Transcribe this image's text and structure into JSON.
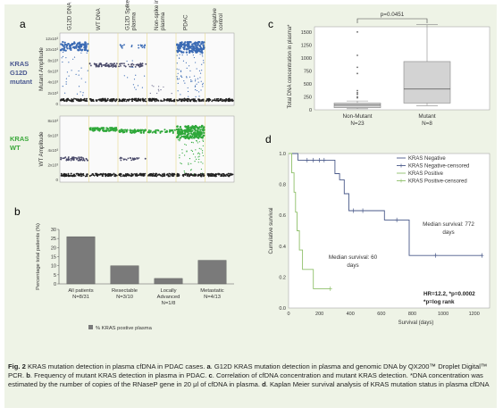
{
  "panels": {
    "a": {
      "letter": "a",
      "col_labels": [
        "G12D DNA",
        "WT DNA",
        "G12D Spike in plasma",
        "Non-spike in plasma",
        "PDAC",
        "Negative control"
      ],
      "top": {
        "row_label": [
          "KRAS",
          "G12D",
          "mutant"
        ],
        "ylabel": "Mutant Amplitude",
        "yticks": [
          "12x10³",
          "10x10³",
          "8x10³",
          "6x10³",
          "4x10³",
          "2x10³",
          "0"
        ]
      },
      "bottom": {
        "row_label": [
          "KRAS",
          "WT"
        ],
        "ylabel": "WT Amplitude",
        "yticks": [
          "8x10³",
          "6x10³",
          "4x10³",
          "2x10³",
          "0"
        ]
      },
      "colors": {
        "mutant": "#3b6bb4",
        "wt": "#2fa83a",
        "negative": "#222222",
        "low": "#3a3a5a"
      }
    },
    "b": {
      "letter": "b",
      "chart_data": {
        "type": "bar",
        "categories": [
          [
            "All patients",
            "N=8/31"
          ],
          [
            "Resectable",
            "N=3/10"
          ],
          [
            "Locally",
            "Advanced",
            "N=1/8"
          ],
          [
            "Metastatic",
            "N=4/13"
          ]
        ],
        "values": [
          26,
          10,
          3,
          13
        ],
        "ylabel": "Percentage total patients (%)",
        "ylim": [
          0,
          30
        ],
        "yticks": [
          "0",
          "5",
          "10",
          "15",
          "20",
          "25",
          "30"
        ],
        "legend": "% KRAS postive plasma",
        "bar_color": "#7a7a7a"
      }
    },
    "c": {
      "letter": "c",
      "chart_data": {
        "type": "box",
        "ylabel": "Total DNA concentration in plasma*",
        "ylim": [
          0,
          1600
        ],
        "yticks": [
          "0",
          "250",
          "500",
          "750",
          "1000",
          "1250",
          "1500"
        ],
        "pvalue": "p=0.0451",
        "groups": [
          {
            "label": "Non-Mutant",
            "n": "N=23",
            "min": 20,
            "q1": 40,
            "median": 90,
            "q3": 130,
            "max": 170,
            "outliers": [
              230,
              250,
              300,
              330,
              370,
              700,
              820,
              1050,
              1500
            ]
          },
          {
            "label": "Mutant",
            "n": "N=8",
            "min": 80,
            "q1": 130,
            "median": 400,
            "q3": 930,
            "max": 1640,
            "outliers": []
          }
        ]
      }
    },
    "d": {
      "letter": "d",
      "chart_data": {
        "type": "line",
        "xlabel": "Survival (days)",
        "ylabel": "Cumulative survival",
        "xlim": [
          0,
          1300
        ],
        "ylim": [
          0,
          1.0
        ],
        "xticks": [
          "0",
          "200",
          "400",
          "600",
          "800",
          "1000",
          "1200"
        ],
        "yticks": [
          "0.0",
          "0.2",
          "0.4",
          "0.6",
          "0.8",
          "1.0"
        ],
        "series": [
          {
            "name": "KRAS Negative",
            "color": "#4a5a8a",
            "steps": [
              [
                0,
                1.0
              ],
              [
                60,
                1.0
              ],
              [
                60,
                0.957
              ],
              [
                300,
                0.957
              ],
              [
                300,
                0.87
              ],
              [
                330,
                0.87
              ],
              [
                330,
                0.83
              ],
              [
                360,
                0.83
              ],
              [
                360,
                0.74
              ],
              [
                390,
                0.74
              ],
              [
                390,
                0.63
              ],
              [
                620,
                0.63
              ],
              [
                620,
                0.57
              ],
              [
                780,
                0.57
              ],
              [
                780,
                0.34
              ],
              [
                1250,
                0.34
              ]
            ],
            "censored": [
              [
                120,
                0.957
              ],
              [
                160,
                0.957
              ],
              [
                200,
                0.957
              ],
              [
                230,
                0.957
              ],
              [
                420,
                0.63
              ],
              [
                480,
                0.63
              ],
              [
                700,
                0.57
              ],
              [
                950,
                0.34
              ],
              [
                1250,
                0.34
              ]
            ]
          },
          {
            "name": "KRAS Positive",
            "color": "#8fc06a",
            "steps": [
              [
                0,
                1.0
              ],
              [
                20,
                1.0
              ],
              [
                20,
                0.875
              ],
              [
                35,
                0.875
              ],
              [
                35,
                0.75
              ],
              [
                45,
                0.75
              ],
              [
                45,
                0.62
              ],
              [
                55,
                0.62
              ],
              [
                55,
                0.5
              ],
              [
                70,
                0.5
              ],
              [
                70,
                0.375
              ],
              [
                90,
                0.375
              ],
              [
                90,
                0.25
              ],
              [
                160,
                0.25
              ],
              [
                160,
                0.125
              ],
              [
                270,
                0.125
              ]
            ],
            "censored": [
              [
                270,
                0.125
              ]
            ]
          }
        ],
        "legend": [
          "KRAS Negative",
          "KRAS Negative-censored",
          "KRAS Positive",
          "KRAS Positive-censored"
        ],
        "annotations": {
          "median_neg": [
            "Median survival: 772",
            "days"
          ],
          "median_pos": [
            "Median survival: 60",
            "days"
          ],
          "hr": "HR=12.2, *p=0.0002",
          "logrank": "*p=log rank"
        }
      }
    }
  },
  "caption": {
    "fig": "Fig. 2",
    "title": " KRAS mutation detection in plasma cfDNA in PDAC cases. ",
    "a": "a",
    "a_text": ". G12D KRAS mutation detection in plasma and genomic DNA by QX200™ Droplet Digital™ PCR. ",
    "b": "b",
    "b_text": ". Frequency of mutant KRAS detection in plasma in PDAC. ",
    "c": "c",
    "c_text": ". Correlation of cfDNA concentration and mutant KRAS detection. *DNA concentration was estimated by the number of copies of the RNaseP gene in 20 μl of cfDNA in plasma. ",
    "d": "d",
    "d_text": ". Kaplan Meier survival analysis of KRAS mutation status in plasma cfDNA"
  }
}
